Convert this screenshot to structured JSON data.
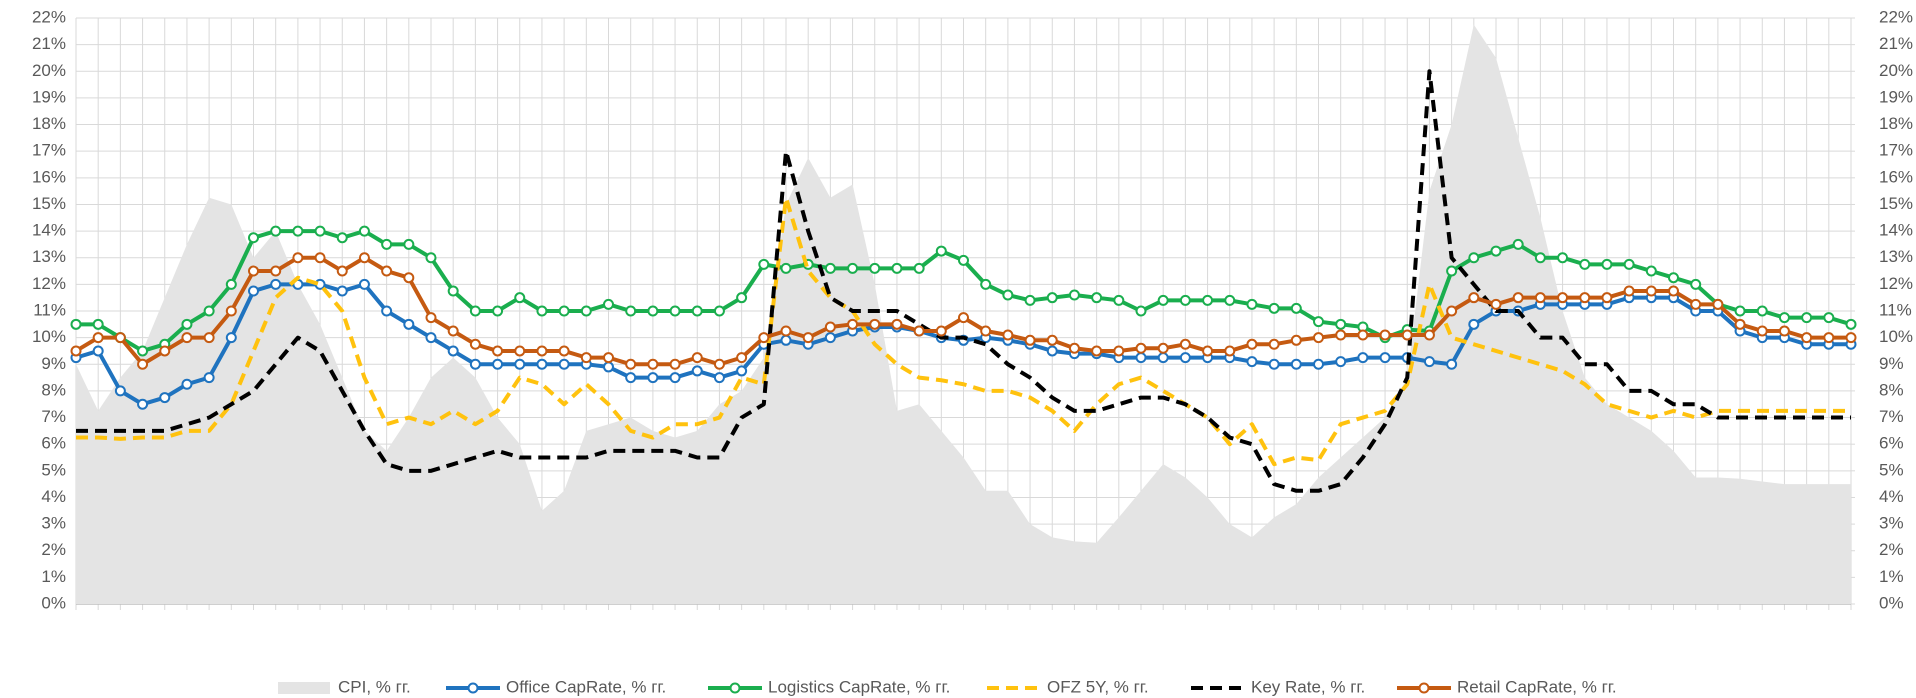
{
  "chart_data": {
    "type": "line",
    "ylim": [
      0,
      22
    ],
    "yticks": [
      {
        "value": 0,
        "label": "0%"
      },
      {
        "value": 1,
        "label": "1%"
      },
      {
        "value": 2,
        "label": "2%"
      },
      {
        "value": 3,
        "label": "3%"
      },
      {
        "value": 4,
        "label": "4%"
      },
      {
        "value": 5,
        "label": "5%"
      },
      {
        "value": 6,
        "label": "6%"
      },
      {
        "value": 7,
        "label": "7%"
      },
      {
        "value": 8,
        "label": "8%"
      },
      {
        "value": 9,
        "label": "9%"
      },
      {
        "value": 10,
        "label": "10%"
      },
      {
        "value": 11,
        "label": "11%"
      },
      {
        "value": 12,
        "label": "12%"
      },
      {
        "value": 13,
        "label": "13%"
      },
      {
        "value": 14,
        "label": "14%"
      },
      {
        "value": 15,
        "label": "15%"
      },
      {
        "value": 16,
        "label": "16%"
      },
      {
        "value": 17,
        "label": "17%"
      },
      {
        "value": 18,
        "label": "18%"
      },
      {
        "value": 19,
        "label": "19%"
      },
      {
        "value": 20,
        "label": "20%"
      },
      {
        "value": 21,
        "label": "21%"
      },
      {
        "value": 22,
        "label": "22%"
      }
    ],
    "y2lim": [
      0,
      22
    ],
    "y2ticks": [
      {
        "value": 0,
        "label": "0%"
      },
      {
        "value": 1,
        "label": "1%"
      },
      {
        "value": 2,
        "label": "2%"
      },
      {
        "value": 3,
        "label": "3%"
      },
      {
        "value": 4,
        "label": "4%"
      },
      {
        "value": 5,
        "label": "5%"
      },
      {
        "value": 6,
        "label": "6%"
      },
      {
        "value": 7,
        "label": "7%"
      },
      {
        "value": 8,
        "label": "8%"
      },
      {
        "value": 9,
        "label": "9%"
      },
      {
        "value": 10,
        "label": "10%"
      },
      {
        "value": 11,
        "label": "11%"
      },
      {
        "value": 12,
        "label": "12%"
      },
      {
        "value": 13,
        "label": "13%"
      },
      {
        "value": 14,
        "label": "14%"
      },
      {
        "value": 15,
        "label": "15%"
      },
      {
        "value": 16,
        "label": "16%"
      },
      {
        "value": 17,
        "label": "17%"
      },
      {
        "value": 18,
        "label": "18%"
      },
      {
        "value": 19,
        "label": "19%"
      },
      {
        "value": 20,
        "label": "20%"
      },
      {
        "value": 21,
        "label": "21%"
      },
      {
        "value": 22,
        "label": "22%"
      }
    ],
    "grid": true,
    "legend": "bottom",
    "series": [
      {
        "name": "CPI, % гг.",
        "color": "#e4e4e4",
        "kind": "area",
        "values": [
          9,
          7.25,
          8.5,
          9.5,
          11.5,
          13.5,
          15.25,
          15,
          13,
          14,
          12,
          10.5,
          8.5,
          6.5,
          5.75,
          7,
          8.5,
          9.25,
          8.5,
          7,
          6,
          3.5,
          4.25,
          6.5,
          6.75,
          7,
          6.5,
          6.25,
          6.5,
          7.5,
          8,
          9.25,
          15,
          16.75,
          15.25,
          15.75,
          12,
          7.25,
          7.5,
          6.5,
          5.5,
          4.25,
          4.25,
          3,
          2.5,
          2.35,
          2.3,
          3.25,
          4.25,
          5.25,
          4.75,
          4,
          3,
          2.5,
          3.25,
          3.75,
          4.75,
          5.5,
          6.25,
          7,
          8.5,
          15.5,
          18,
          21.75,
          20.5,
          17.5,
          14.5,
          11,
          8.5,
          7.5,
          7,
          6.5,
          5.75,
          4.75,
          4.75,
          4.7,
          4.6,
          4.5,
          4.5,
          4.5,
          4.5
        ]
      },
      {
        "name": "Office CapRate, % гг.",
        "color": "#1f73bf",
        "kind": "line",
        "markers": true,
        "values": [
          9.25,
          9.5,
          8,
          7.5,
          7.75,
          8.25,
          8.5,
          10,
          11.75,
          12,
          12,
          12,
          11.75,
          12,
          11,
          10.5,
          10,
          9.5,
          9,
          9,
          9,
          9,
          9,
          9,
          8.9,
          8.5,
          8.5,
          8.5,
          8.75,
          8.5,
          8.75,
          9.75,
          9.9,
          9.75,
          10,
          10.25,
          10.4,
          10.4,
          10.25,
          10,
          9.9,
          10,
          9.9,
          9.75,
          9.5,
          9.4,
          9.4,
          9.25,
          9.25,
          9.25,
          9.25,
          9.25,
          9.25,
          9.1,
          9,
          9,
          9,
          9.1,
          9.25,
          9.25,
          9.25,
          9.1,
          9,
          10.5,
          11,
          11,
          11.25,
          11.25,
          11.25,
          11.25,
          11.5,
          11.5,
          11.5,
          11,
          11,
          10.25,
          10,
          10,
          9.75,
          9.75,
          9.75
        ]
      },
      {
        "name": "Logistics CapRate, % гг.",
        "color": "#1aae4e",
        "kind": "line",
        "markers": true,
        "values": [
          10.5,
          10.5,
          10,
          9.5,
          9.75,
          10.5,
          11,
          12,
          13.75,
          14,
          14,
          14,
          13.75,
          14,
          13.5,
          13.5,
          13,
          11.75,
          11,
          11,
          11.5,
          11,
          11,
          11,
          11.25,
          11,
          11,
          11,
          11,
          11,
          11.5,
          12.75,
          12.6,
          12.75,
          12.6,
          12.6,
          12.6,
          12.6,
          12.6,
          13.25,
          12.9,
          12,
          11.6,
          11.4,
          11.5,
          11.6,
          11.5,
          11.4,
          11,
          11.4,
          11.4,
          11.4,
          11.4,
          11.25,
          11.1,
          11.1,
          10.6,
          10.5,
          10.4,
          10,
          10.3,
          10.25,
          12.5,
          13,
          13.25,
          13.5,
          13,
          13,
          12.75,
          12.75,
          12.75,
          12.5,
          12.25,
          12,
          11.25,
          11,
          11,
          10.75,
          10.75,
          10.75,
          10.5
        ]
      },
      {
        "name": "OFZ 5Y, % гг.",
        "color": "#ffc20e",
        "kind": "line",
        "dash": "dashed",
        "values": [
          6.25,
          6.25,
          6.2,
          6.25,
          6.25,
          6.5,
          6.5,
          7.5,
          9.5,
          11.5,
          12.25,
          12,
          11,
          8.5,
          6.75,
          7,
          6.75,
          7.25,
          6.75,
          7.25,
          8.5,
          8.25,
          7.5,
          8.25,
          7.5,
          6.5,
          6.25,
          6.75,
          6.75,
          7,
          8.5,
          8.25,
          15.25,
          12.5,
          11.5,
          11,
          9.75,
          9,
          8.5,
          8.4,
          8.25,
          8,
          8,
          7.75,
          7.25,
          6.5,
          7.5,
          8.25,
          8.5,
          8,
          7.5,
          7,
          6,
          6.75,
          5.25,
          5.5,
          5.4,
          6.75,
          7,
          7.25,
          8.25,
          12,
          10,
          9.75,
          9.5,
          9.25,
          9,
          8.75,
          8.25,
          7.5,
          7.25,
          7,
          7.25,
          7,
          7.25,
          7.25,
          7.25,
          7.25,
          7.25,
          7.25,
          7.25
        ]
      },
      {
        "name": "Key Rate, % гг.",
        "color": "#000000",
        "kind": "line",
        "dash": "dashed",
        "values": [
          6.5,
          6.5,
          6.5,
          6.5,
          6.5,
          6.75,
          7,
          7.5,
          8,
          9,
          10,
          9.5,
          8,
          6.5,
          5.25,
          5,
          5,
          5.25,
          5.5,
          5.75,
          5.5,
          5.5,
          5.5,
          5.5,
          5.75,
          5.75,
          5.75,
          5.75,
          5.5,
          5.5,
          7,
          7.5,
          17,
          14,
          11.5,
          11,
          11,
          11,
          10.5,
          10,
          10,
          9.75,
          9,
          8.5,
          7.75,
          7.25,
          7.25,
          7.5,
          7.75,
          7.75,
          7.5,
          7,
          6.25,
          6,
          4.5,
          4.25,
          4.25,
          4.5,
          5.5,
          6.75,
          8.5,
          20,
          13,
          12,
          11,
          11,
          10,
          10,
          9,
          9,
          8,
          8,
          7.5,
          7.5,
          7,
          7,
          7,
          7,
          7,
          7,
          7
        ]
      },
      {
        "name": "Retail CapRate, % гг.",
        "color": "#c55a11",
        "kind": "line",
        "markers": true,
        "values": [
          9.5,
          10,
          10,
          9,
          9.5,
          10,
          10,
          11,
          12.5,
          12.5,
          13,
          13,
          12.5,
          13,
          12.5,
          12.25,
          10.75,
          10.25,
          9.75,
          9.5,
          9.5,
          9.5,
          9.5,
          9.25,
          9.25,
          9,
          9,
          9,
          9.25,
          9,
          9.25,
          10,
          10.25,
          10,
          10.4,
          10.5,
          10.5,
          10.5,
          10.25,
          10.25,
          10.75,
          10.25,
          10.1,
          9.9,
          9.9,
          9.6,
          9.5,
          9.5,
          9.6,
          9.6,
          9.75,
          9.5,
          9.5,
          9.75,
          9.75,
          9.9,
          10,
          10.1,
          10.1,
          10.1,
          10.1,
          10.1,
          11,
          11.5,
          11.25,
          11.5,
          11.5,
          11.5,
          11.5,
          11.5,
          11.75,
          11.75,
          11.75,
          11.25,
          11.25,
          10.5,
          10.25,
          10.25,
          10,
          10,
          10
        ]
      }
    ]
  }
}
